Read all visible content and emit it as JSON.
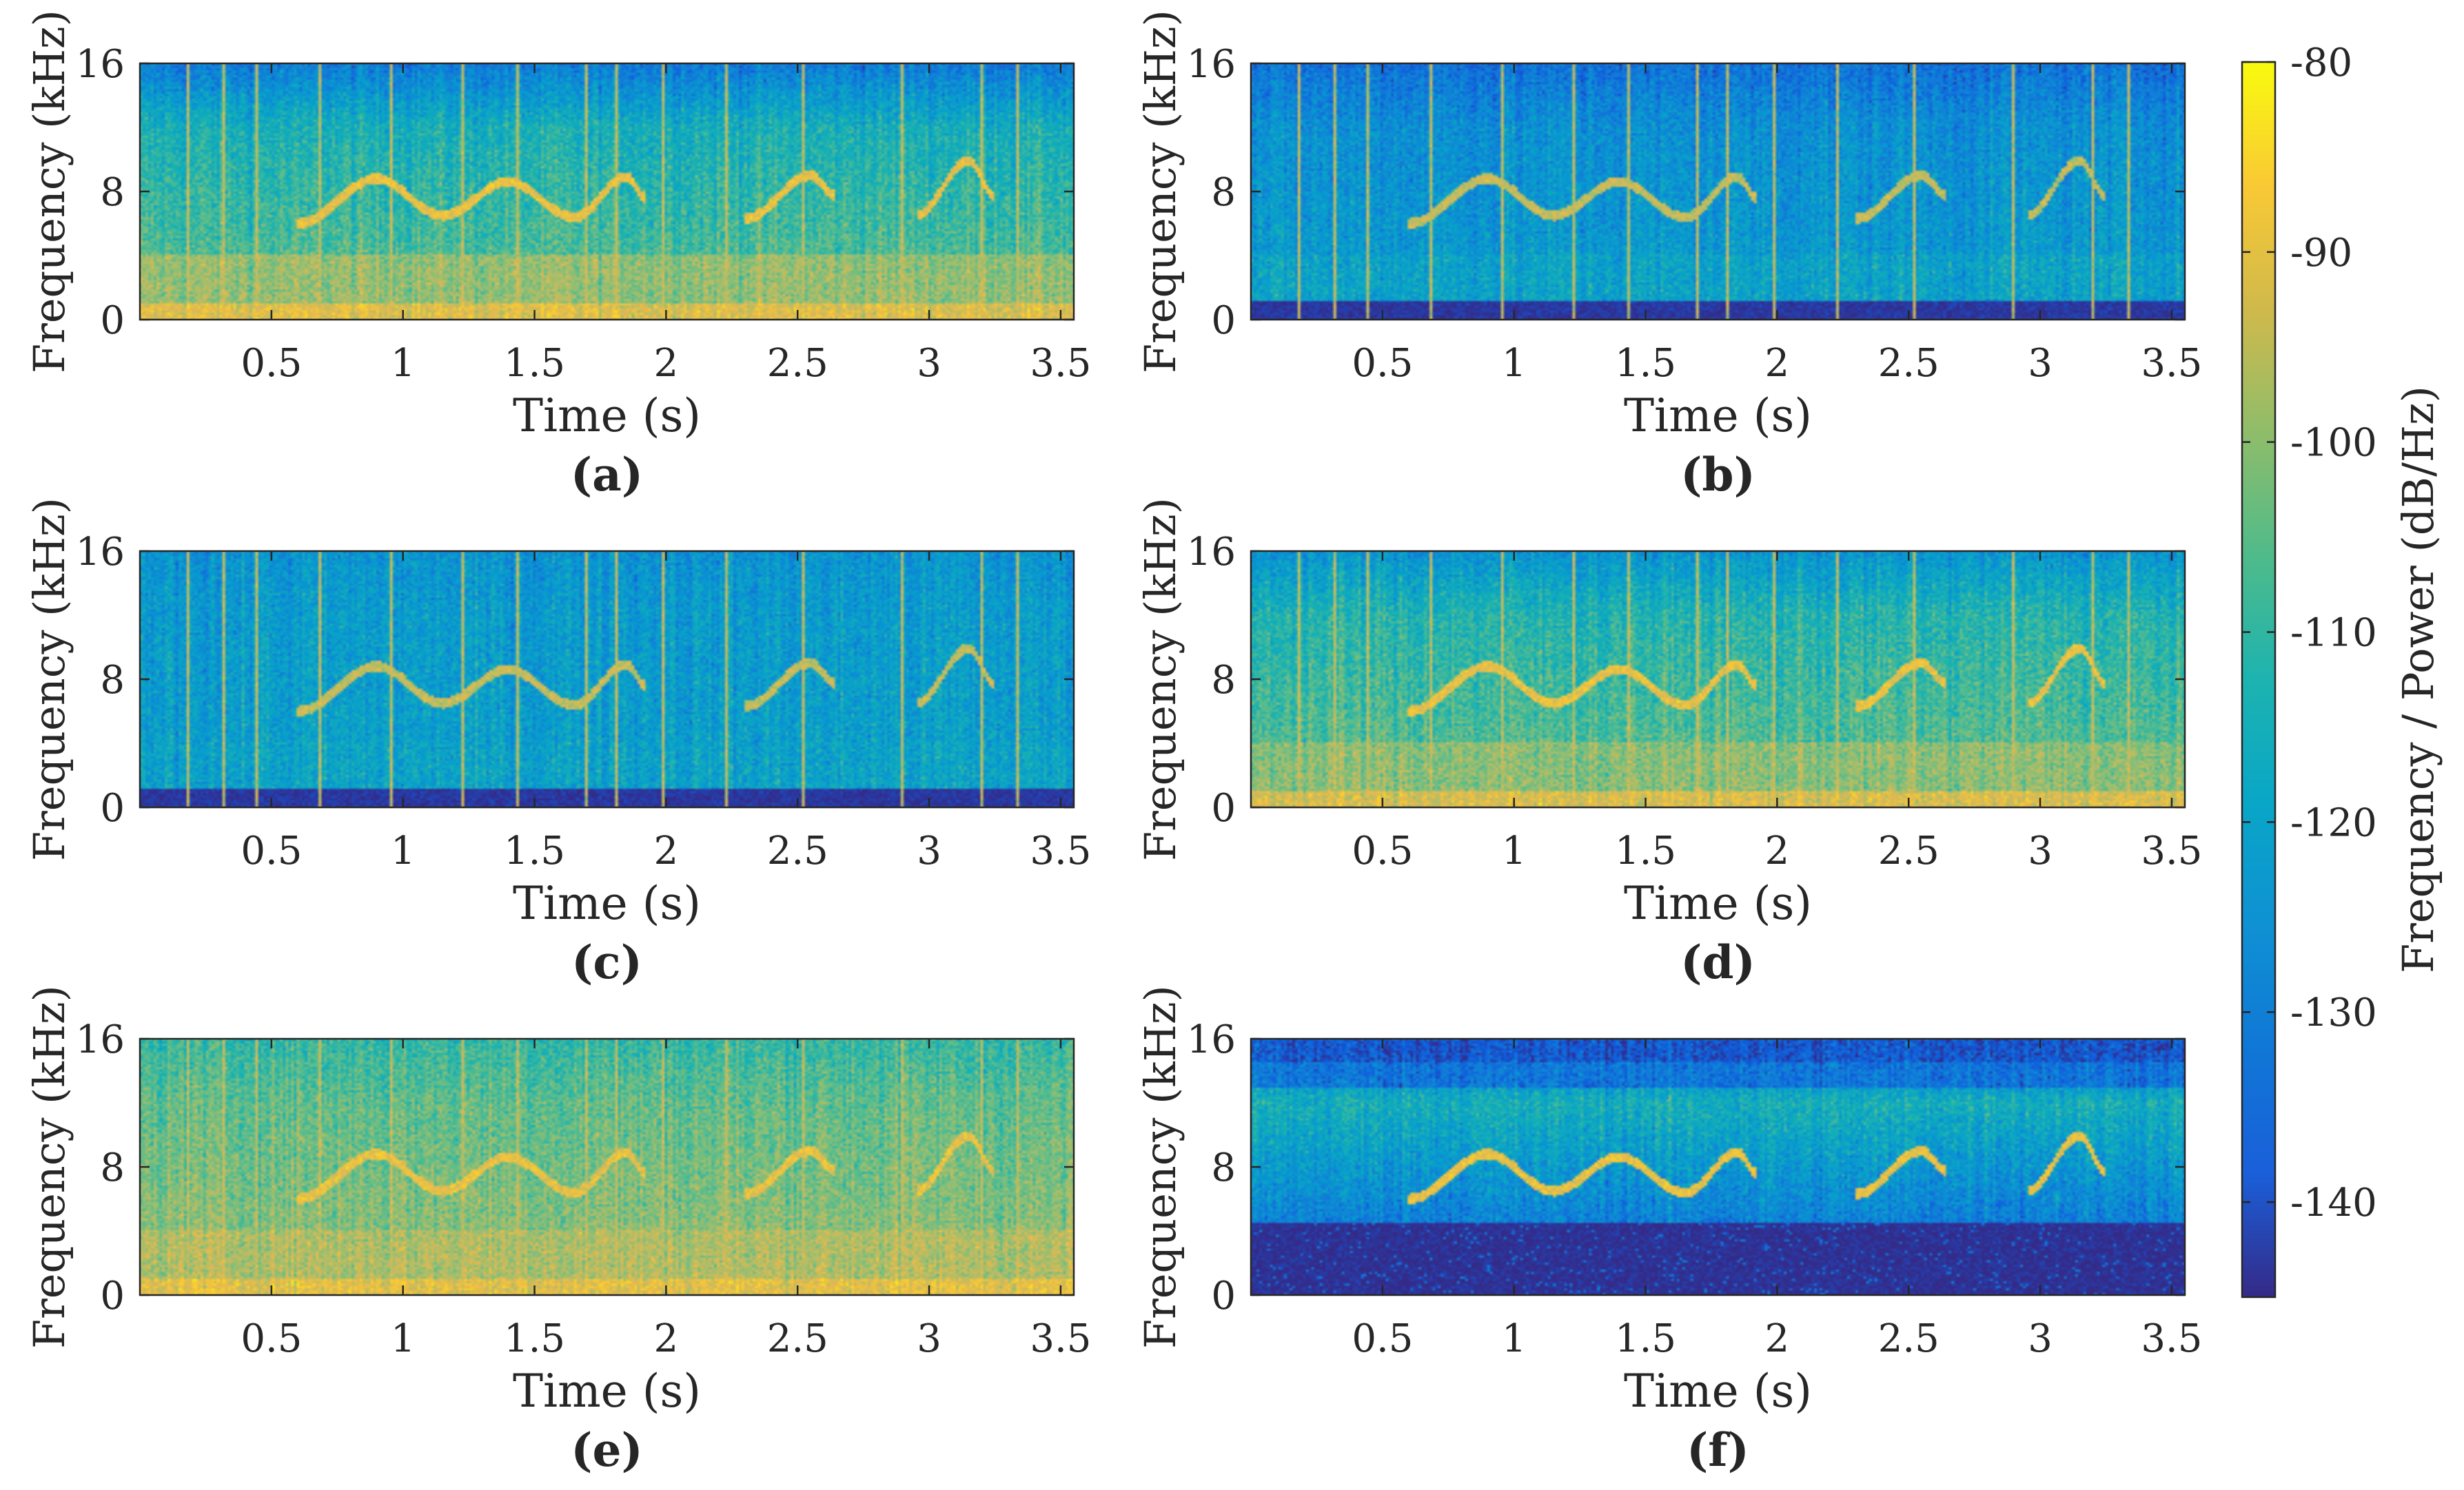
{
  "chart_data": [
    {
      "type": "heatmap",
      "panel": "(a)",
      "xlabel": "Time (s)",
      "ylabel": "Frequency (kHz)",
      "xticks": [
        0.5,
        1,
        1.5,
        2,
        2.5,
        3,
        3.5
      ],
      "yticks": [
        0,
        8,
        16
      ],
      "xlim": [
        0,
        3.55
      ],
      "ylim": [
        0,
        16
      ],
      "noise": {
        "top": -131,
        "mid": -117,
        "low": -103,
        "band": -94,
        "cut_khz": null
      }
    },
    {
      "type": "heatmap",
      "panel": "(b)",
      "xlabel": "Time (s)",
      "ylabel": "Frequency (kHz)",
      "xticks": [
        0.5,
        1,
        1.5,
        2,
        2.5,
        3,
        3.5
      ],
      "yticks": [
        0,
        8,
        16
      ],
      "xlim": [
        0,
        3.55
      ],
      "ylim": [
        0,
        16
      ],
      "noise": {
        "top": -133,
        "mid": -126,
        "low": -121,
        "band": -143,
        "cut_khz": 1.2
      }
    },
    {
      "type": "heatmap",
      "panel": "(c)",
      "xlabel": "Time (s)",
      "ylabel": "Frequency (kHz)",
      "xticks": [
        0.5,
        1,
        1.5,
        2,
        2.5,
        3,
        3.5
      ],
      "yticks": [
        0,
        8,
        16
      ],
      "xlim": [
        0,
        3.55
      ],
      "ylim": [
        0,
        16
      ],
      "noise": {
        "top": -125,
        "mid": -123,
        "low": -121,
        "band": -143,
        "cut_khz": 1.2
      }
    },
    {
      "type": "heatmap",
      "panel": "(d)",
      "xlabel": "Time (s)",
      "ylabel": "Frequency (kHz)",
      "xticks": [
        0.5,
        1,
        1.5,
        2,
        2.5,
        3,
        3.5
      ],
      "yticks": [
        0,
        8,
        16
      ],
      "xlim": [
        0,
        3.55
      ],
      "ylim": [
        0,
        16
      ],
      "noise": {
        "top": -125,
        "mid": -115,
        "low": -104,
        "band": -95,
        "cut_khz": null
      }
    },
    {
      "type": "heatmap",
      "panel": "(e)",
      "xlabel": "Time (s)",
      "ylabel": "Frequency (kHz)",
      "xticks": [
        0.5,
        1,
        1.5,
        2,
        2.5,
        3,
        3.5
      ],
      "yticks": [
        0,
        8,
        16
      ],
      "xlim": [
        0,
        3.55
      ],
      "ylim": [
        0,
        16
      ],
      "noise": {
        "top": -113,
        "mid": -108,
        "low": -100,
        "band": -93,
        "cut_khz": null
      }
    },
    {
      "type": "heatmap",
      "panel": "(f)",
      "xlabel": "Time (s)",
      "ylabel": "Frequency (kHz)",
      "xticks": [
        0.5,
        1,
        1.5,
        2,
        2.5,
        3,
        3.5
      ],
      "yticks": [
        0,
        8,
        16
      ],
      "xlim": [
        0,
        3.55
      ],
      "ylim": [
        0,
        16
      ],
      "noise": {
        "top": -138,
        "mid": -117,
        "low": -144,
        "band": -144,
        "cut_khz": 4.5
      }
    }
  ],
  "colorbar": {
    "label": "Frequency / Power (dB/Hz)",
    "ticks": [
      -80,
      -90,
      -100,
      -110,
      -120,
      -130,
      -140
    ],
    "range": [
      -145,
      -80
    ],
    "colormap": "parula"
  },
  "signal": {
    "description_units": "time in s, frequency in kHz",
    "segments": [
      {
        "t": [
          0.6,
          0.9,
          1.15,
          1.4,
          1.65,
          1.85,
          1.92
        ],
        "f": [
          6.0,
          8.8,
          6.5,
          8.6,
          6.4,
          8.9,
          7.6
        ]
      },
      {
        "t": [
          2.3,
          2.55,
          2.64
        ],
        "f": [
          6.3,
          9.0,
          7.8
        ]
      },
      {
        "t": [
          2.95,
          3.15,
          3.25
        ],
        "f": [
          6.5,
          9.9,
          7.7
        ]
      }
    ],
    "vertical_lines_s": [
      0.18,
      0.31,
      0.44,
      0.68,
      0.95,
      1.22,
      1.43,
      1.69,
      1.81,
      1.98,
      2.22,
      2.52,
      2.89,
      3.19,
      3.33
    ]
  }
}
